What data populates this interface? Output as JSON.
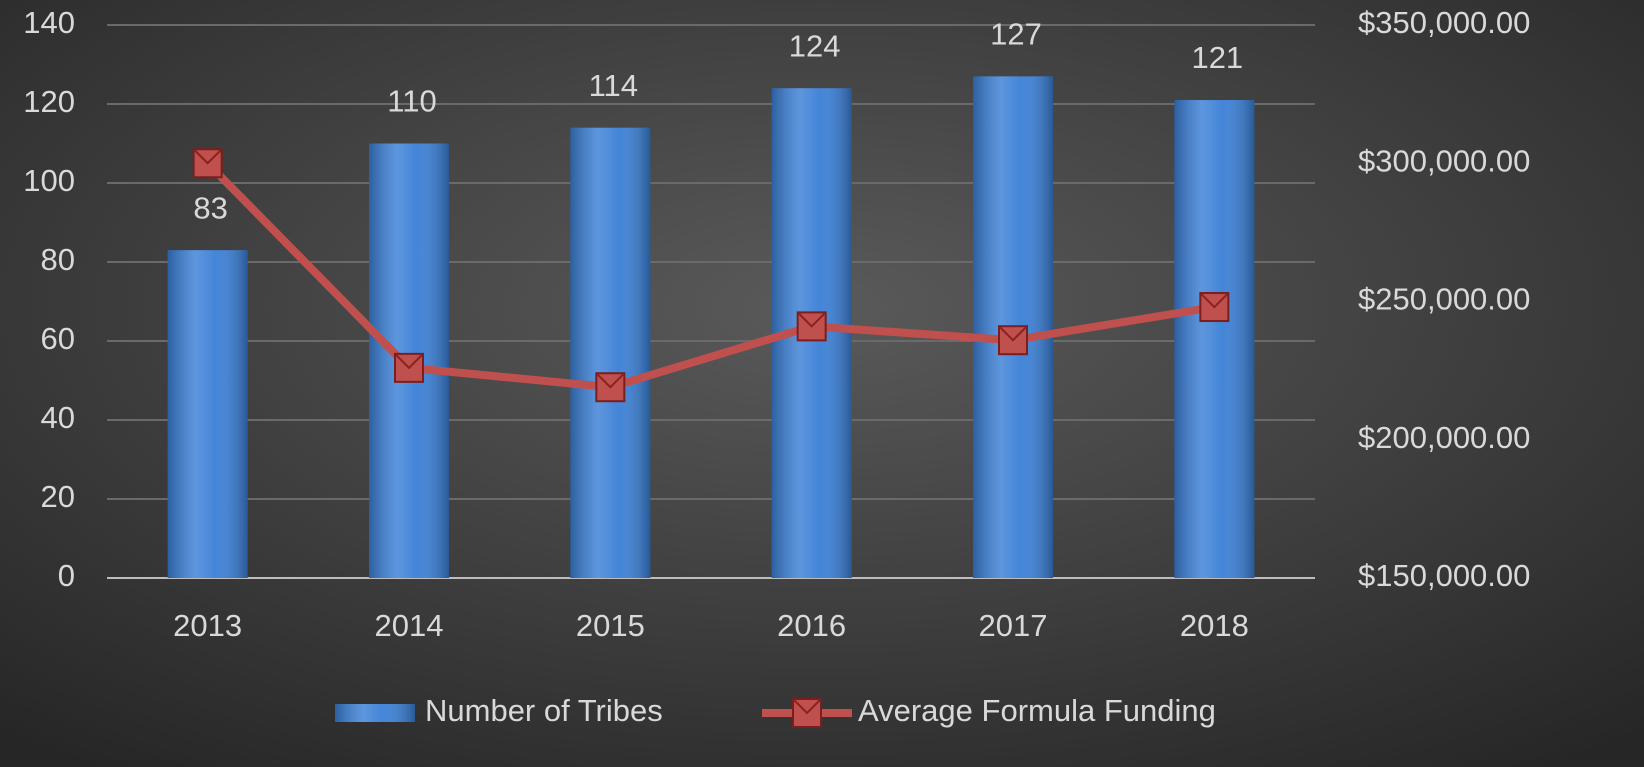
{
  "chart_data": {
    "type": "bar-line",
    "categories": [
      "2013",
      "2014",
      "2015",
      "2016",
      "2017",
      "2018"
    ],
    "series": [
      {
        "name": "Number of Tribes",
        "type": "bar",
        "color": "#3a7fd6",
        "values": [
          83,
          110,
          114,
          124,
          127,
          121
        ]
      },
      {
        "name": "Average Formula Funding",
        "type": "line",
        "axis": "y2",
        "color": "#c0504d",
        "values": [
          300000,
          226000,
          219000,
          241000,
          236000,
          248000
        ]
      }
    ],
    "ylim": [
      0,
      140
    ],
    "yticks": [
      0,
      20,
      40,
      60,
      80,
      100,
      120,
      140
    ],
    "y2lim": [
      150000,
      350000
    ],
    "y2ticks": [
      {
        "value": 150000,
        "label": "$150,000.00"
      },
      {
        "value": 200000,
        "label": "$200,000.00"
      },
      {
        "value": 250000,
        "label": "$250,000.00"
      },
      {
        "value": 300000,
        "label": "$300,000.00"
      },
      {
        "value": 350000,
        "label": "$350,000.00"
      }
    ],
    "grid": true,
    "legend": "bottom"
  }
}
